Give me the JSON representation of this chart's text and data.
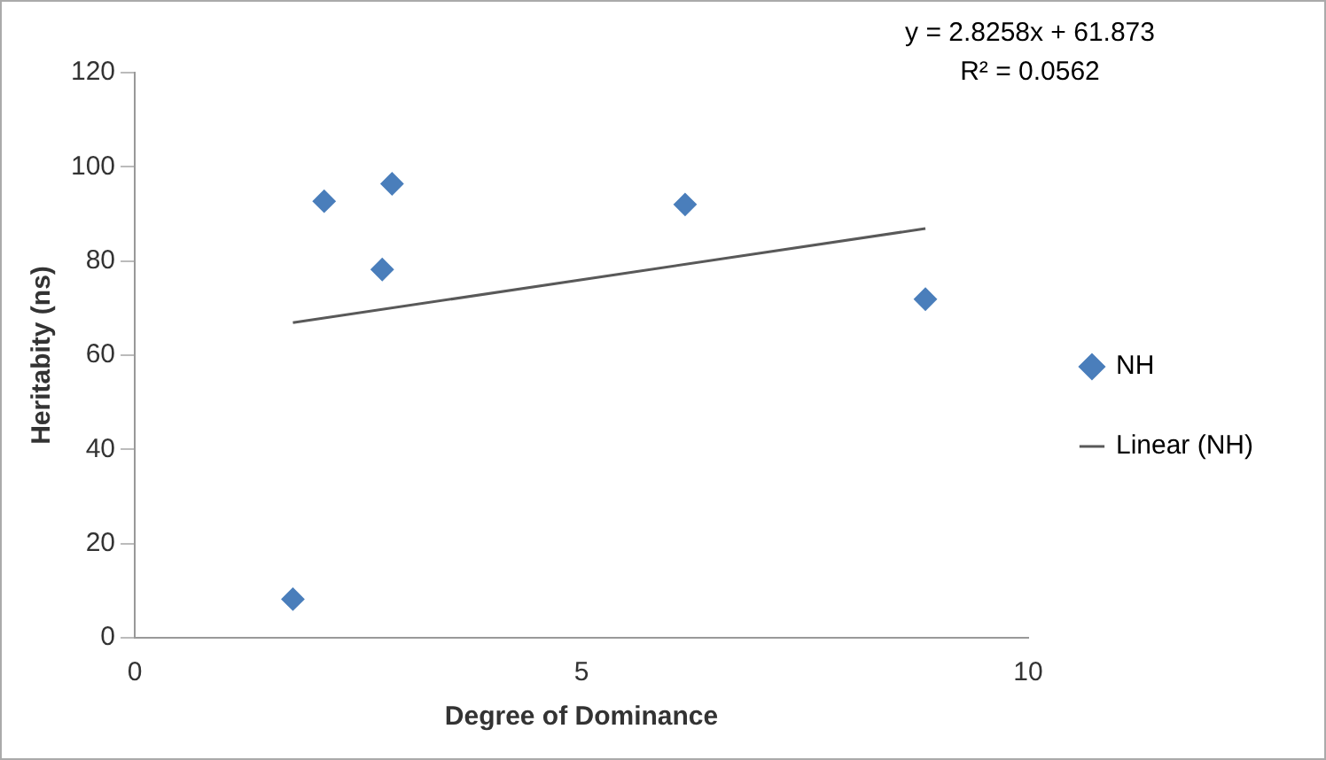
{
  "chart_data": {
    "type": "scatter",
    "xlabel": "Degree of Dominance",
    "ylabel": "Heritabity (ns)",
    "xlim": [
      0,
      10
    ],
    "xticks": [
      0,
      5,
      10
    ],
    "ylim": [
      0,
      120
    ],
    "yticks": [
      0,
      20,
      40,
      60,
      80,
      100,
      120
    ],
    "grid": false,
    "legend": "right",
    "annotations": [
      "y = 2.8258x + 61.873",
      "R² = 0.0562"
    ],
    "series": [
      {
        "name": "NH",
        "marker": "diamond",
        "color": "#4a7ebb",
        "x": [
          1.77,
          2.12,
          2.88,
          2.77,
          6.16,
          8.85
        ],
        "values": [
          8.2,
          92.7,
          96.4,
          78.2,
          92.0,
          71.9
        ]
      },
      {
        "name": "Linear (NH)",
        "type": "line",
        "marker": "none",
        "line_style": "solid",
        "color": "#595959",
        "x": [
          1.77,
          8.85
        ],
        "values": [
          66.9,
          86.9
        ]
      }
    ]
  }
}
